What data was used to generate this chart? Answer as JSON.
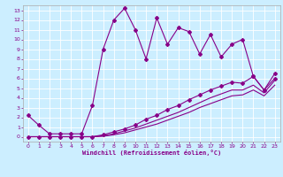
{
  "bg_color": "#cceeff",
  "grid_color": "#ffffff",
  "line_color": "#880088",
  "xlabel": "Windchill (Refroidissement éolien,°C)",
  "ylim": [
    -0.5,
    13.5
  ],
  "xlim": [
    -0.5,
    23.5
  ],
  "yticks": [
    0,
    1,
    2,
    3,
    4,
    5,
    6,
    7,
    8,
    9,
    10,
    11,
    12,
    13
  ],
  "xticks": [
    0,
    1,
    2,
    3,
    4,
    5,
    6,
    7,
    8,
    9,
    10,
    11,
    12,
    13,
    14,
    15,
    16,
    17,
    18,
    19,
    20,
    21,
    22,
    23
  ],
  "series1_x": [
    0,
    1,
    2,
    3,
    4,
    5,
    6,
    7,
    8,
    9,
    10,
    11,
    12,
    13,
    14,
    15,
    16,
    17,
    18,
    19,
    20,
    21,
    22,
    23
  ],
  "series1_y": [
    2.2,
    1.2,
    0.3,
    0.3,
    0.3,
    0.3,
    3.2,
    9.0,
    12.0,
    13.2,
    11.0,
    8.0,
    12.2,
    9.5,
    11.2,
    10.8,
    8.5,
    10.5,
    8.2,
    9.5,
    10.0,
    6.2,
    4.8,
    6.0
  ],
  "series2_x": [
    0,
    1,
    2,
    3,
    4,
    5,
    6,
    7,
    8,
    9,
    10,
    11,
    12,
    13,
    14,
    15,
    16,
    17,
    18,
    19,
    20,
    21,
    22,
    23
  ],
  "series2_y": [
    0.0,
    0.0,
    0.0,
    0.0,
    0.0,
    0.0,
    0.0,
    0.2,
    0.5,
    0.8,
    1.2,
    1.8,
    2.2,
    2.8,
    3.2,
    3.8,
    4.3,
    4.8,
    5.2,
    5.6,
    5.5,
    6.2,
    4.8,
    6.5
  ],
  "series3_x": [
    0,
    1,
    2,
    3,
    4,
    5,
    6,
    7,
    8,
    9,
    10,
    11,
    12,
    13,
    14,
    15,
    16,
    17,
    18,
    19,
    20,
    21,
    22,
    23
  ],
  "series3_y": [
    0.0,
    0.0,
    0.0,
    0.0,
    0.0,
    0.0,
    0.0,
    0.1,
    0.3,
    0.6,
    0.9,
    1.3,
    1.7,
    2.1,
    2.5,
    3.0,
    3.5,
    4.0,
    4.4,
    4.8,
    4.8,
    5.3,
    4.5,
    5.8
  ],
  "series4_x": [
    0,
    1,
    2,
    3,
    4,
    5,
    6,
    7,
    8,
    9,
    10,
    11,
    12,
    13,
    14,
    15,
    16,
    17,
    18,
    19,
    20,
    21,
    22,
    23
  ],
  "series4_y": [
    0.0,
    0.0,
    0.0,
    0.0,
    0.0,
    0.0,
    0.0,
    0.05,
    0.2,
    0.4,
    0.7,
    1.0,
    1.3,
    1.7,
    2.1,
    2.5,
    3.0,
    3.4,
    3.8,
    4.2,
    4.3,
    4.8,
    4.2,
    5.3
  ]
}
